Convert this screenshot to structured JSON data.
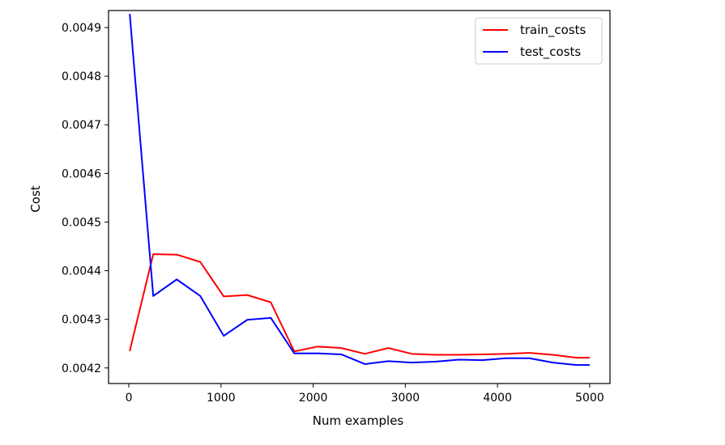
{
  "chart_data": {
    "type": "line",
    "title": "",
    "xlabel": "Num examples",
    "ylabel": "Cost",
    "xlim": [
      -220,
      5220
    ],
    "ylim": [
      0.004168,
      0.004935
    ],
    "grid": false,
    "legend_position": "top-right",
    "x_ticks": [
      0,
      1000,
      2000,
      3000,
      4000,
      5000
    ],
    "x_tick_labels": [
      "0",
      "1000",
      "2000",
      "3000",
      "4000",
      "5000"
    ],
    "y_ticks": [
      0.0042,
      0.0043,
      0.0044,
      0.0045,
      0.0046,
      0.0047,
      0.0048,
      0.0049
    ],
    "y_tick_labels": [
      "0.0042",
      "0.0043",
      "0.0044",
      "0.0045",
      "0.0046",
      "0.0047",
      "0.0048",
      "0.0049"
    ],
    "x": [
      10,
      265,
      520,
      775,
      1030,
      1285,
      1540,
      1795,
      2050,
      2305,
      2560,
      2815,
      3070,
      3325,
      3580,
      3835,
      4090,
      4345,
      4600,
      4855,
      5000
    ],
    "series": [
      {
        "name": "train_costs",
        "color": "#ff0000",
        "values": [
          0.004235,
          0.004434,
          0.004433,
          0.004418,
          0.004347,
          0.00435,
          0.004335,
          0.004234,
          0.004244,
          0.004241,
          0.004229,
          0.004241,
          0.004229,
          0.004227,
          0.004227,
          0.004228,
          0.004229,
          0.004231,
          0.004227,
          0.004221,
          0.004221
        ]
      },
      {
        "name": "test_costs",
        "color": "#0000ff",
        "values": [
          0.004928,
          0.004348,
          0.004382,
          0.004348,
          0.004266,
          0.004299,
          0.004303,
          0.00423,
          0.00423,
          0.004228,
          0.004208,
          0.004214,
          0.004211,
          0.004213,
          0.004217,
          0.004216,
          0.00422,
          0.00422,
          0.004211,
          0.004206,
          0.004206
        ]
      }
    ]
  }
}
